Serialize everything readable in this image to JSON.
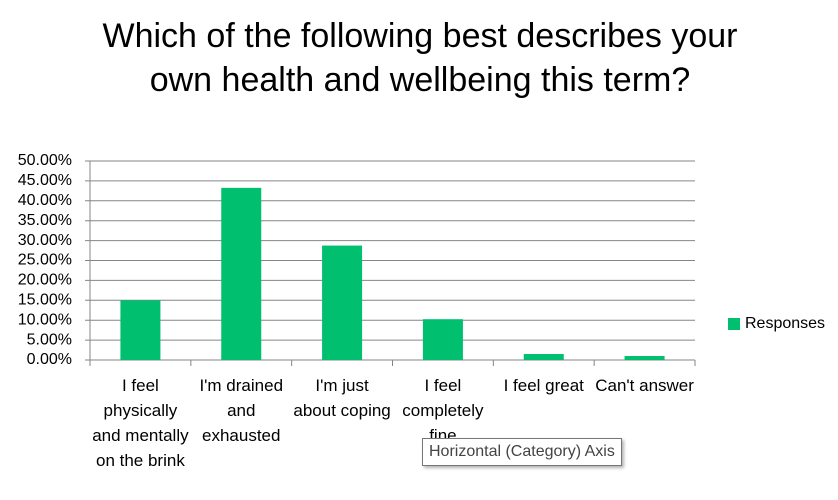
{
  "chart_data": {
    "type": "bar",
    "title": "Which of the following best describes your own health and wellbeing this term?",
    "categories": [
      "I feel physically and mentally on the brink",
      "I'm drained and exhausted",
      "I'm just about coping",
      "I feel completely fine",
      "I feel great",
      "Can't answer"
    ],
    "series": [
      {
        "name": "Responses",
        "color": "#00bf6f",
        "values": [
          15,
          43.25,
          28.75,
          10.25,
          1.5,
          1
        ]
      }
    ],
    "ylim": [
      0,
      50
    ],
    "yticks": [
      {
        "value": 0,
        "label": "0.00%"
      },
      {
        "value": 5,
        "label": "5.00%"
      },
      {
        "value": 10,
        "label": "10.00%"
      },
      {
        "value": 15,
        "label": "15.00%"
      },
      {
        "value": 20,
        "label": "20.00%"
      },
      {
        "value": 25,
        "label": "25.00%"
      },
      {
        "value": 30,
        "label": "30.00%"
      },
      {
        "value": 35,
        "label": "35.00%"
      },
      {
        "value": 40,
        "label": "40.00%"
      },
      {
        "value": 45,
        "label": "45.00%"
      },
      {
        "value": 50,
        "label": "50.00%"
      }
    ],
    "grid": true,
    "legend": "right",
    "tooltip": "Horizontal (Category) Axis"
  }
}
